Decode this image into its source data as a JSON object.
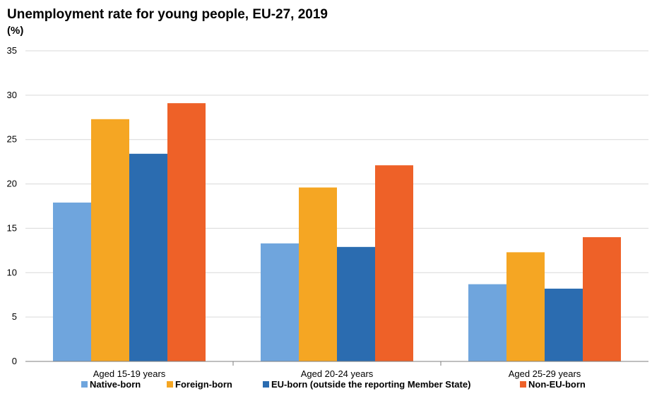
{
  "chart_data": {
    "type": "bar",
    "title": "Unemployment rate for young people, EU-27, 2019",
    "unit_label": "(%)",
    "categories": [
      "Aged 15-19 years",
      "Aged 20-24 years",
      "Aged 25-29 years"
    ],
    "series": [
      {
        "name": "Native-born",
        "color": "#6fa5dd",
        "values": [
          17.9,
          13.3,
          8.7
        ]
      },
      {
        "name": "Foreign-born",
        "color": "#f5a623",
        "values": [
          27.3,
          19.6,
          12.3
        ]
      },
      {
        "name": "EU-born (outside the reporting Member State)",
        "color": "#2b6cb0",
        "values": [
          23.4,
          12.9,
          8.2
        ]
      },
      {
        "name": "Non-EU-born",
        "color": "#ee6128",
        "values": [
          29.1,
          22.1,
          14.0
        ]
      }
    ],
    "ylim": [
      0,
      35
    ],
    "yticks": [
      0,
      5,
      10,
      15,
      20,
      25,
      30,
      35
    ],
    "grid": true,
    "legend_position": "bottom"
  }
}
